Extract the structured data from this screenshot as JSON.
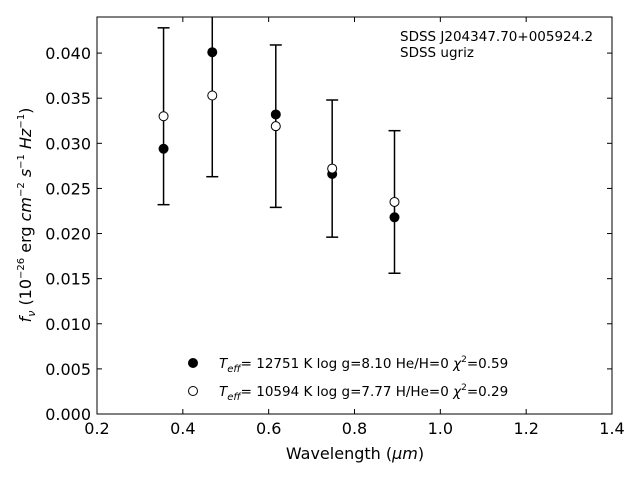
{
  "chart_data": {
    "type": "scatter",
    "title": "",
    "xlabel": "Wavelength",
    "xlabel_unit": "μm",
    "ylabel_quantity": "f",
    "ylabel_subscript": "ν",
    "ylabel_units": "erg cm s Hz",
    "ylabel_scale": "10⁻²⁶",
    "xlim": [
      0.2,
      1.4
    ],
    "ylim": [
      0.0,
      0.044
    ],
    "xticks": [
      0.2,
      0.4,
      0.6,
      0.8,
      1.0,
      1.2,
      1.4
    ],
    "xtick_labels": [
      "0.2",
      "0.4",
      "0.6",
      "0.8",
      "1.0",
      "1.2",
      "1.4"
    ],
    "yticks": [
      0.0,
      0.005,
      0.01,
      0.015,
      0.02,
      0.025,
      0.03,
      0.035,
      0.04
    ],
    "ytick_labels": [
      "0.000",
      "0.005",
      "0.010",
      "0.015",
      "0.020",
      "0.025",
      "0.030",
      "0.035",
      "0.040"
    ],
    "grid": false,
    "annotation": [
      "SDSS J204347.70+005924.2",
      "SDSS ugriz"
    ],
    "observed": {
      "x": [
        0.3551,
        0.4686,
        0.6166,
        0.748,
        0.8932
      ],
      "y": [
        0.033,
        0.0353,
        0.0319,
        0.0272,
        0.0235
      ],
      "err": [
        0.0098,
        0.009,
        0.009,
        0.0076,
        0.0079
      ]
    },
    "series": [
      {
        "name": "T_eff= 12751 K  log g=8.10  He/H=0  χ²=0.59",
        "marker": "filled-circle",
        "x": [
          0.3551,
          0.4686,
          0.6166,
          0.748,
          0.8932
        ],
        "y": [
          0.0294,
          0.0401,
          0.0332,
          0.0266,
          0.0218
        ]
      },
      {
        "name": "T_eff= 10594 K  log g=7.77  H/He=0  χ²=0.29",
        "marker": "open-circle",
        "x": [
          0.3551,
          0.4686,
          0.6166,
          0.748,
          0.8932
        ],
        "y": [
          0.033,
          0.0353,
          0.0319,
          0.0272,
          0.0235
        ]
      }
    ],
    "legend": [
      {
        "teff": "12751",
        "logg": "8.10",
        "comp": "He/H=0",
        "chi2": "0.59"
      },
      {
        "teff": "10594",
        "logg": "7.77",
        "comp": "H/He=0",
        "chi2": "0.29"
      }
    ],
    "legend_placement": "lower-center",
    "colors": {
      "marker": "#000000",
      "axes": "#000000"
    }
  }
}
